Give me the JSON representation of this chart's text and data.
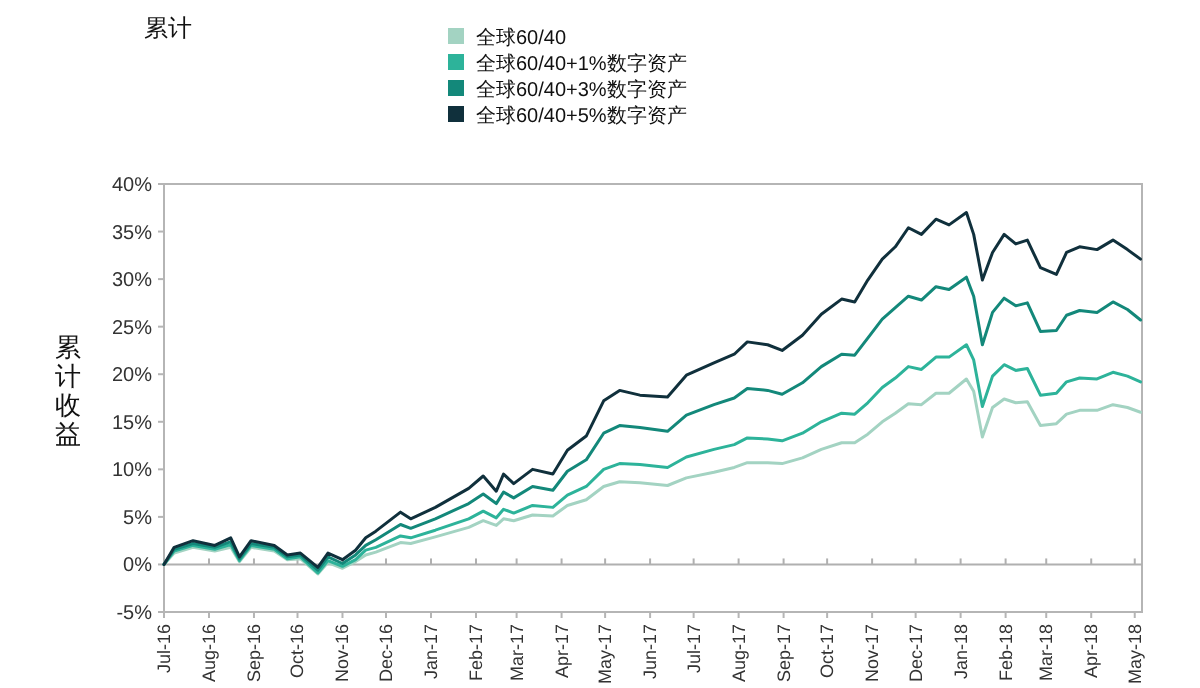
{
  "chart_data": {
    "type": "line",
    "title": "累计",
    "ylabel": "累计收益",
    "x": [
      "2016-07-01",
      "2016-07-08",
      "2016-07-21",
      "2016-08-05",
      "2016-08-16",
      "2016-08-22",
      "2016-08-30",
      "2016-09-15",
      "2016-09-24",
      "2016-10-03",
      "2016-10-15",
      "2016-10-22",
      "2016-11-01",
      "2016-11-10",
      "2016-11-17",
      "2016-11-24",
      "2016-12-11",
      "2016-12-18",
      "2017-01-04",
      "2017-01-27",
      "2017-02-06",
      "2017-02-15",
      "2017-02-20",
      "2017-02-27",
      "2017-03-12",
      "2017-03-26",
      "2017-04-05",
      "2017-04-18",
      "2017-04-30",
      "2017-05-11",
      "2017-05-25",
      "2017-06-13",
      "2017-06-26",
      "2017-07-15",
      "2017-07-29",
      "2017-08-07",
      "2017-08-21",
      "2017-08-31",
      "2017-09-14",
      "2017-09-27",
      "2017-10-11",
      "2017-10-20",
      "2017-10-29",
      "2017-11-08",
      "2017-11-17",
      "2017-11-26",
      "2017-12-05",
      "2017-12-15",
      "2017-12-24",
      "2018-01-05",
      "2018-01-10",
      "2018-01-16",
      "2018-01-23",
      "2018-01-31",
      "2018-02-08",
      "2018-02-16",
      "2018-02-25",
      "2018-03-08",
      "2018-03-15",
      "2018-03-24",
      "2018-04-05",
      "2018-04-16",
      "2018-04-26",
      "2018-05-05"
    ],
    "series": [
      {
        "name": "全球60/40",
        "color": "#a3d3c2",
        "values": [
          0,
          1.2,
          1.8,
          1.4,
          1.8,
          0.3,
          1.8,
          1.4,
          0.5,
          0.6,
          -1.0,
          0.2,
          -0.4,
          0.3,
          1.0,
          1.3,
          2.3,
          2.2,
          2.9,
          3.9,
          4.6,
          4.1,
          4.8,
          4.6,
          5.2,
          5.1,
          6.2,
          6.8,
          8.2,
          8.7,
          8.6,
          8.3,
          9.1,
          9.7,
          10.2,
          10.7,
          10.7,
          10.6,
          11.2,
          12.1,
          12.8,
          12.8,
          13.7,
          15.0,
          15.9,
          16.9,
          16.8,
          18.0,
          18.0,
          19.5,
          18.2,
          13.4,
          16.5,
          17.4,
          17.0,
          17.1,
          14.6,
          14.8,
          15.8,
          16.2,
          16.2,
          16.8,
          16.5,
          16.0
        ]
      },
      {
        "name": "全球60/40+1%数字资产",
        "color": "#2db39a",
        "values": [
          0,
          1.4,
          2.0,
          1.6,
          2.1,
          0.4,
          2.0,
          1.6,
          0.6,
          0.8,
          -0.9,
          0.4,
          -0.2,
          0.5,
          1.5,
          1.8,
          3.0,
          2.8,
          3.6,
          4.8,
          5.6,
          4.9,
          5.8,
          5.4,
          6.2,
          6.0,
          7.3,
          8.2,
          10.0,
          10.6,
          10.5,
          10.2,
          11.3,
          12.1,
          12.6,
          13.3,
          13.2,
          13.0,
          13.8,
          15.0,
          15.9,
          15.8,
          17.0,
          18.6,
          19.6,
          20.8,
          20.5,
          21.8,
          21.8,
          23.1,
          21.5,
          16.6,
          19.8,
          21.0,
          20.4,
          20.6,
          17.8,
          18.0,
          19.2,
          19.6,
          19.5,
          20.2,
          19.8,
          19.2
        ]
      },
      {
        "name": "全球60/40+3%数字资产",
        "color": "#13887a",
        "values": [
          0,
          1.6,
          2.2,
          1.8,
          2.4,
          0.6,
          2.2,
          1.8,
          0.8,
          1.0,
          -0.6,
          0.8,
          0.1,
          1.0,
          2.0,
          2.6,
          4.2,
          3.8,
          4.8,
          6.4,
          7.4,
          6.4,
          7.6,
          7.0,
          8.2,
          7.8,
          9.8,
          11.0,
          13.8,
          14.6,
          14.4,
          14.0,
          15.7,
          16.8,
          17.5,
          18.5,
          18.3,
          17.9,
          19.1,
          20.8,
          22.1,
          22.0,
          23.8,
          25.8,
          27.0,
          28.2,
          27.8,
          29.2,
          28.9,
          30.2,
          28.2,
          23.1,
          26.5,
          28.0,
          27.2,
          27.5,
          24.5,
          24.6,
          26.2,
          26.7,
          26.5,
          27.6,
          26.8,
          25.7
        ]
      },
      {
        "name": "全球60/40+5%数字资产",
        "color": "#10303c",
        "values": [
          0,
          1.8,
          2.5,
          2.0,
          2.8,
          0.8,
          2.5,
          2.0,
          1.0,
          1.2,
          -0.3,
          1.2,
          0.5,
          1.5,
          2.8,
          3.5,
          5.5,
          4.8,
          6.0,
          8.0,
          9.3,
          7.7,
          9.5,
          8.5,
          10.0,
          9.5,
          12.0,
          13.5,
          17.2,
          18.3,
          17.8,
          17.6,
          19.9,
          21.2,
          22.1,
          23.4,
          23.1,
          22.5,
          24.1,
          26.3,
          27.9,
          27.6,
          29.9,
          32.1,
          33.4,
          35.4,
          34.7,
          36.3,
          35.7,
          37.0,
          34.7,
          29.9,
          32.8,
          34.7,
          33.7,
          34.1,
          31.2,
          30.5,
          32.8,
          33.4,
          33.1,
          34.1,
          33.1,
          32.1
        ]
      }
    ],
    "xlim": [
      "2016-07-01",
      "2018-05-06"
    ],
    "xticks": [
      {
        "value": "2016-07-01",
        "label": "Jul-16"
      },
      {
        "value": "2016-08-01",
        "label": "Aug-16"
      },
      {
        "value": "2016-09-01",
        "label": "Sep-16"
      },
      {
        "value": "2016-10-01",
        "label": "Oct-16"
      },
      {
        "value": "2016-11-01",
        "label": "Nov-16"
      },
      {
        "value": "2016-12-01",
        "label": "Dec-16"
      },
      {
        "value": "2017-01-01",
        "label": "Jan-17"
      },
      {
        "value": "2017-02-01",
        "label": "Feb-17"
      },
      {
        "value": "2017-03-01",
        "label": "Mar-17"
      },
      {
        "value": "2017-04-01",
        "label": "Apr-17"
      },
      {
        "value": "2017-05-01",
        "label": "May-17"
      },
      {
        "value": "2017-06-01",
        "label": "Jun-17"
      },
      {
        "value": "2017-07-01",
        "label": "Jul-17"
      },
      {
        "value": "2017-08-01",
        "label": "Aug-17"
      },
      {
        "value": "2017-09-01",
        "label": "Sep-17"
      },
      {
        "value": "2017-10-01",
        "label": "Oct-17"
      },
      {
        "value": "2017-11-01",
        "label": "Nov-17"
      },
      {
        "value": "2017-12-01",
        "label": "Dec-17"
      },
      {
        "value": "2018-01-01",
        "label": "Jan-18"
      },
      {
        "value": "2018-02-01",
        "label": "Feb-18"
      },
      {
        "value": "2018-03-01",
        "label": "Mar-18"
      },
      {
        "value": "2018-04-01",
        "label": "Apr-18"
      },
      {
        "value": "2018-05-01",
        "label": "May-18"
      }
    ],
    "ylim": [
      -5,
      40
    ],
    "yticks": [
      {
        "value": -5,
        "label": "-5%"
      },
      {
        "value": 0,
        "label": "0%"
      },
      {
        "value": 5,
        "label": "5%"
      },
      {
        "value": 10,
        "label": "10%"
      },
      {
        "value": 15,
        "label": "15%"
      },
      {
        "value": 20,
        "label": "20%"
      },
      {
        "value": 25,
        "label": "25%"
      },
      {
        "value": 30,
        "label": "30%"
      },
      {
        "value": 35,
        "label": "35%"
      },
      {
        "value": 40,
        "label": "40%"
      }
    ],
    "ref_lines": [
      {
        "axis": "y",
        "value": 0,
        "color": "#b0b0b0"
      }
    ],
    "grid": false,
    "legend": "top",
    "marker": "none",
    "line_style": "solid"
  }
}
